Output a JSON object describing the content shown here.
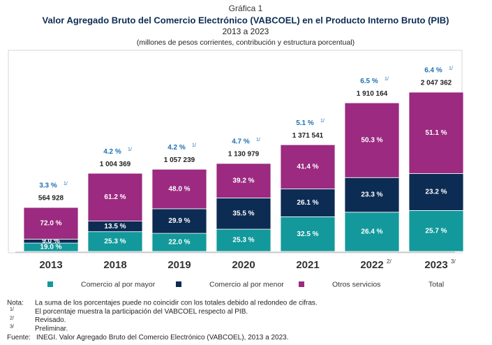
{
  "chart_data": {
    "type": "stacked-share-bar",
    "label": "Gráfica 1",
    "title": "Valor Agregado Bruto del Comercio Electrónico (VABCOEL) en el Producto Interno Bruto (PIB)",
    "subtitle": "2013 a 2023",
    "caption": "(millones de pesos corrientes, contribución y estructura porcentual)",
    "categories": [
      "2013",
      "2018",
      "2019",
      "2020",
      "2021",
      "2022",
      "2023"
    ],
    "category_notes": [
      null,
      null,
      null,
      null,
      null,
      "2/",
      "3/"
    ],
    "series": [
      {
        "name": "Comercio al por mayor",
        "color": "#13999b",
        "values": [
          19.0,
          25.3,
          22.0,
          25.3,
          32.5,
          26.4,
          25.7
        ],
        "value_labels": [
          "19.0 %",
          "25.3 %",
          "22.0 %",
          "25.3 %",
          "32.5 %",
          "26.4 %",
          "25.7 %"
        ]
      },
      {
        "name": "Comercio al por menor",
        "color": "#0d2c54",
        "values": [
          9.0,
          13.5,
          29.9,
          35.5,
          26.1,
          23.3,
          23.2
        ],
        "value_labels": [
          "9.0 %",
          "13.5 %",
          "29.9 %",
          "35.5 %",
          "26.1 %",
          "23.3 %",
          "23.2 %"
        ]
      },
      {
        "name": "Otros servicios",
        "color": "#9b2a80",
        "values": [
          72.0,
          61.2,
          48.0,
          39.2,
          41.4,
          50.3,
          51.1
        ],
        "value_labels": [
          "72.0 %",
          "61.2 %",
          "48.0 %",
          "39.2 %",
          "41.4 %",
          "50.3 %",
          "51.1 %"
        ]
      }
    ],
    "total": {
      "name": "Total",
      "values": [
        564928,
        1004369,
        1057239,
        1130979,
        1371541,
        1910164,
        2047362
      ],
      "value_labels": [
        "564 928",
        "1 004 369",
        "1 057 239",
        "1 130 979",
        "1 371 541",
        "1 910 164",
        "2 047 362"
      ]
    },
    "share_of_gdp": {
      "values": [
        3.3,
        4.2,
        4.2,
        4.7,
        5.1,
        6.5,
        6.4
      ],
      "value_labels": [
        "3.3 %",
        "4.2 %",
        "4.2 %",
        "4.7 %",
        "5.1 %",
        "6.5 %",
        "6.4 %"
      ],
      "note": "1/"
    },
    "notes": [
      {
        "mark": "Nota:",
        "text": "La suma de los porcentajes puede no coincidir con los totales debido al redondeo de cifras."
      },
      {
        "mark": "1/",
        "text": "El porcentaje muestra la participación del VABCOEL respecto al PIB."
      },
      {
        "mark": "2/",
        "text": "Revisado."
      },
      {
        "mark": "3/",
        "text": "Preliminar."
      },
      {
        "mark": "Fuente:",
        "text": "INEGI. Valor Agregado Bruto del Comercio Electrónico (VABCOEL), 2013 a 2023."
      }
    ]
  }
}
